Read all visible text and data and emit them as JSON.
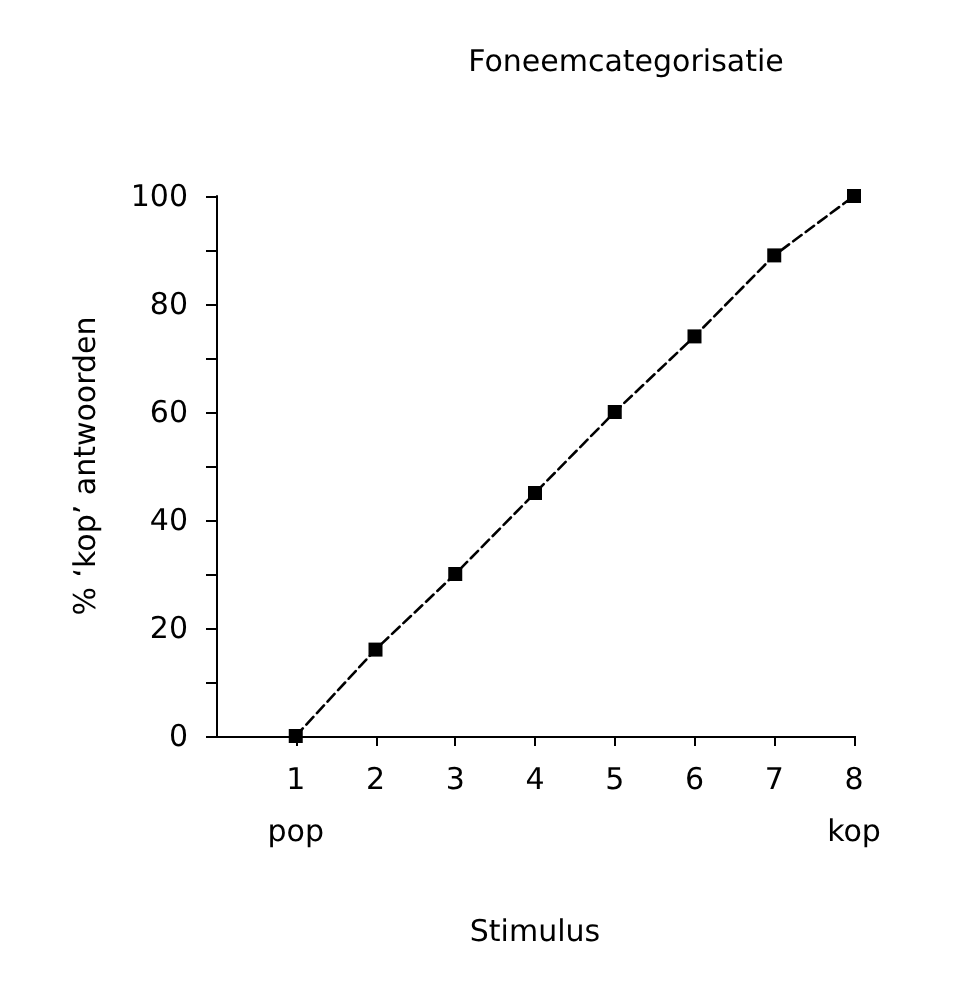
{
  "chart_data": {
    "type": "line",
    "title": "Foneemcategorisatie",
    "xlabel": "Stimulus",
    "ylabel": "% ‘kop’ antwoorden",
    "x": [
      1,
      2,
      3,
      4,
      5,
      6,
      7,
      8
    ],
    "series": [
      {
        "color": "#000000",
        "values": [
          0,
          16,
          30,
          45,
          60,
          74,
          89,
          100
        ]
      }
    ],
    "xlim": [
      0,
      8
    ],
    "xticks": [
      1,
      2,
      3,
      4,
      5,
      6,
      7,
      8
    ],
    "ylim": [
      0,
      100
    ],
    "yticks": [
      0,
      {
        "value": 10,
        "label": null
      },
      20,
      {
        "value": 30,
        "label": null
      },
      40,
      {
        "value": 50,
        "label": null
      },
      60,
      {
        "value": 70,
        "label": null
      },
      80,
      {
        "value": 90,
        "label": null
      },
      100
    ],
    "annotations": [
      "pop",
      "kop"
    ],
    "grid": false,
    "marker": "square",
    "line_style": "dashed"
  }
}
